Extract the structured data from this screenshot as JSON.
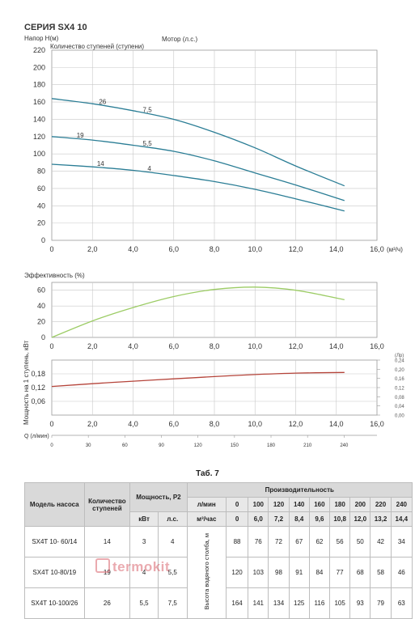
{
  "series_title": "СЕРИЯ SX4 10",
  "chart_data": [
    {
      "type": "line",
      "ylabel": "Напор Н(м)",
      "stages_label": "Количество ступеней (ступени)",
      "motor_label": "Мотор (л.с.)",
      "xlabel": "(м³/ч)",
      "xlim": [
        0,
        16
      ],
      "ylim": [
        0,
        220
      ],
      "xticks": [
        0,
        2,
        4,
        6,
        8,
        10,
        12,
        14,
        16
      ],
      "xtick_labels": [
        "0",
        "2,0",
        "4,0",
        "6,0",
        "8,0",
        "10,0",
        "12,0",
        "14,0",
        "16,0"
      ],
      "yticks": [
        0,
        20,
        40,
        60,
        80,
        100,
        120,
        140,
        160,
        180,
        200,
        220
      ],
      "ytick_labels": [
        "0",
        "20",
        "40",
        "60",
        "80",
        "100",
        "120",
        "140",
        "160",
        "180",
        "200",
        "220"
      ],
      "grid": true,
      "line_color": "#2a7d95",
      "series": [
        {
          "stages": "26",
          "motor": "7,5",
          "x": [
            0,
            2,
            4,
            6,
            8,
            10,
            12,
            14.4
          ],
          "y": [
            164,
            158,
            150,
            140,
            125,
            107,
            86,
            63
          ],
          "stage_label_x": 2.5,
          "motor_label_x": 4.7
        },
        {
          "stages": "19",
          "motor": "5,5",
          "x": [
            0,
            2,
            4,
            6,
            8,
            10,
            12,
            14.4
          ],
          "y": [
            120,
            116,
            110,
            103,
            92,
            78,
            64,
            46
          ],
          "stage_label_x": 1.4,
          "motor_label_x": 4.7
        },
        {
          "stages": "14",
          "motor": "4",
          "x": [
            0,
            2,
            4,
            6,
            8,
            10,
            12,
            14.4
          ],
          "y": [
            88,
            85,
            81,
            75,
            68,
            59,
            48,
            34
          ],
          "stage_label_x": 2.4,
          "motor_label_x": 4.8
        }
      ]
    },
    {
      "type": "line",
      "ylabel": "Эффективность (%)",
      "xlim": [
        0,
        16
      ],
      "ylim": [
        0,
        70
      ],
      "xticks": [
        0,
        2,
        4,
        6,
        8,
        10,
        12,
        14,
        16
      ],
      "xtick_labels": [
        "0",
        "2,0",
        "4,0",
        "6,0",
        "8,0",
        "10,0",
        "12,0",
        "14,0",
        "16,0"
      ],
      "yticks": [
        0,
        20,
        40,
        60
      ],
      "ytick_labels": [
        "0",
        "20",
        "40",
        "60"
      ],
      "grid": true,
      "line_color": "#9ccc65",
      "series": [
        {
          "x": [
            0,
            2,
            4,
            6,
            8,
            10,
            12,
            14.4
          ],
          "y": [
            0,
            21,
            38,
            52,
            61,
            64,
            60,
            48
          ]
        }
      ]
    },
    {
      "type": "line",
      "ylabel": "Мощность на 1 ступень, кВт",
      "y2label": "(Лр)",
      "xlim": [
        0,
        16
      ],
      "ylim": [
        0,
        0.24
      ],
      "xticks": [
        0,
        2,
        4,
        6,
        8,
        10,
        12,
        14,
        16
      ],
      "xtick_labels": [
        "0",
        "2,0",
        "4,0",
        "6,0",
        "8,0",
        "10,0",
        "12,0",
        "14,0",
        "16,0"
      ],
      "yticks": [
        0.06,
        0.12,
        0.18
      ],
      "ytick_labels": [
        "0,06",
        "0,12",
        "0,18"
      ],
      "y2ticks": [
        0,
        0.04,
        0.08,
        0.12,
        0.16,
        0.2,
        0.24
      ],
      "y2tick_labels": [
        "0,00",
        "0,04",
        "0,08",
        "0,12",
        "0,16",
        "0,20",
        "0,24"
      ],
      "grid": true,
      "line_color": "#b5443a",
      "series": [
        {
          "x": [
            0,
            2,
            4,
            6,
            8,
            10,
            12,
            14.4
          ],
          "y": [
            0.125,
            0.137,
            0.148,
            0.158,
            0.168,
            0.177,
            0.183,
            0.186
          ]
        }
      ]
    },
    {
      "type": "axis",
      "xlabel": "Q (л/мин)",
      "xlim": [
        0,
        267
      ],
      "xticks": [
        0,
        30,
        60,
        90,
        120,
        150,
        180,
        210,
        240
      ],
      "xtick_labels": [
        "0",
        "30",
        "60",
        "90",
        "120",
        "150",
        "180",
        "210",
        "240"
      ]
    }
  ],
  "table": {
    "caption": "Таб. 7",
    "headers": {
      "model": "Модель насоса",
      "stages": "Количество ступеней",
      "power": "Мощность, Р2",
      "kw": "кВт",
      "hp": "л.с.",
      "performance": "Производительность",
      "lmin": "л/мин",
      "m3h": "м³/час",
      "height": "Высота водяного столба, м"
    },
    "flow_lmin": [
      "0",
      "100",
      "120",
      "140",
      "160",
      "180",
      "200",
      "220",
      "240"
    ],
    "flow_m3h": [
      "0",
      "6,0",
      "7,2",
      "8,4",
      "9,6",
      "10,8",
      "12,0",
      "13,2",
      "14,4"
    ],
    "rows": [
      {
        "model": "SX4T 10- 60/14",
        "stages": "14",
        "kw": "3",
        "hp": "4",
        "values": [
          "88",
          "76",
          "72",
          "67",
          "62",
          "56",
          "50",
          "42",
          "34"
        ]
      },
      {
        "model": "SX4T 10-80/19",
        "stages": "19",
        "kw": "4",
        "hp": "5,5",
        "values": [
          "120",
          "103",
          "98",
          "91",
          "84",
          "77",
          "68",
          "58",
          "46"
        ]
      },
      {
        "model": "SX4T 10-100/26",
        "stages": "26",
        "kw": "5,5",
        "hp": "7,5",
        "values": [
          "164",
          "141",
          "134",
          "125",
          "116",
          "105",
          "93",
          "79",
          "63"
        ]
      }
    ]
  },
  "watermark": "termokit"
}
